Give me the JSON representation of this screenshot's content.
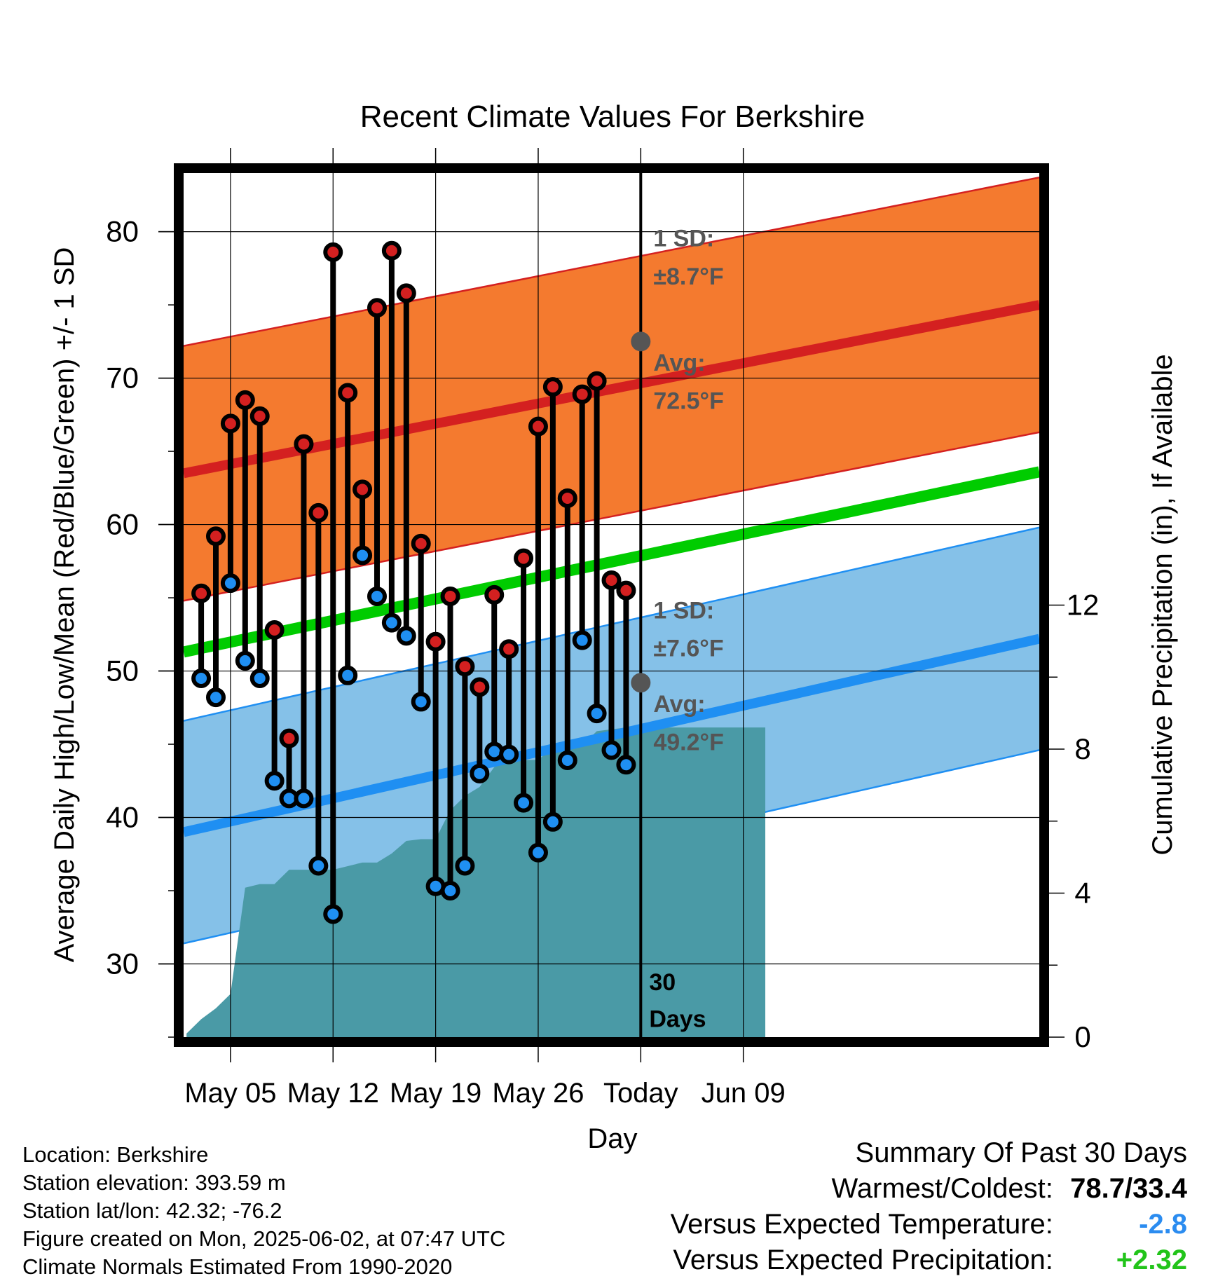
{
  "chart_data": {
    "type": "line",
    "title": "Recent Climate Values For Berkshire",
    "xlabel": "Day",
    "ylabel": "Average Daily High/Low/Mean (Red/Blue/Green) +/- 1 SD",
    "y2label": "Cumulative Precipitation (in), If Available",
    "ylim": [
      25,
      84
    ],
    "y2lim": [
      0,
      24
    ],
    "xlim": [
      -3.2,
      55.2
    ],
    "x_ticks": [
      {
        "x": 0,
        "label": "May 05"
      },
      {
        "x": 7,
        "label": "May 12"
      },
      {
        "x": 14,
        "label": "May 19"
      },
      {
        "x": 21,
        "label": "May 26"
      },
      {
        "x": 28,
        "label": "Today"
      },
      {
        "x": 35,
        "label": "Jun 09"
      }
    ],
    "y_ticks": [
      30,
      40,
      50,
      60,
      70,
      80
    ],
    "y2_ticks": [
      0,
      4,
      8,
      12
    ],
    "today_x": 28,
    "days_label": [
      "30",
      "Days"
    ],
    "normals": {
      "high_avg": {
        "start": 63.5,
        "end": 75.0
      },
      "high_sd": 8.7,
      "low_avg": {
        "start": 39.0,
        "end": 52.2
      },
      "low_sd": 7.6,
      "mean_avg": {
        "start": 51.3,
        "end": 63.6
      },
      "high_label": [
        "1 SD:",
        "±8.7°F",
        "Avg:",
        "72.5°F"
      ],
      "low_label": [
        "1 SD:",
        "±7.6°F",
        "Avg:",
        "49.2°F"
      ],
      "high_today": 72.5,
      "low_today": 49.2
    },
    "series": [
      {
        "name": "High",
        "x": [
          -2,
          -1,
          0,
          1,
          2,
          3,
          4,
          5,
          6,
          7,
          8,
          9,
          10,
          11,
          12,
          13,
          14,
          15,
          16,
          17,
          18,
          19,
          20,
          21,
          22,
          23,
          24,
          25,
          26,
          27
        ],
        "values": [
          55.3,
          59.2,
          66.9,
          68.5,
          67.4,
          52.8,
          45.4,
          65.5,
          60.8,
          78.6,
          69.0,
          62.4,
          74.8,
          78.7,
          75.8,
          58.7,
          52.0,
          55.1,
          50.3,
          48.9,
          55.2,
          51.5,
          57.7,
          66.7,
          69.4,
          61.8,
          68.9,
          69.8,
          56.2,
          55.5
        ]
      },
      {
        "name": "Low",
        "x": [
          -2,
          -1,
          0,
          1,
          2,
          3,
          4,
          5,
          6,
          7,
          8,
          9,
          10,
          11,
          12,
          13,
          14,
          15,
          16,
          17,
          18,
          19,
          20,
          21,
          22,
          23,
          24,
          25,
          26,
          27
        ],
        "values": [
          49.5,
          48.2,
          56.0,
          50.7,
          49.5,
          42.5,
          41.3,
          41.3,
          36.7,
          33.4,
          49.7,
          57.9,
          55.1,
          53.3,
          52.4,
          47.9,
          35.3,
          35.0,
          36.7,
          43.0,
          44.5,
          44.3,
          41.0,
          37.6,
          39.7,
          43.9,
          52.1,
          47.1,
          44.6,
          43.6
        ]
      },
      {
        "name": "Cumulative Precipitation",
        "x": [
          -3,
          -2,
          -1,
          0,
          1,
          2,
          3,
          4,
          5,
          6,
          7,
          8,
          9,
          10,
          11,
          12,
          13,
          14,
          15,
          16,
          17,
          18,
          19,
          20,
          21,
          22,
          23,
          24,
          25,
          26,
          27,
          28,
          36.5
        ],
        "values": [
          0.1,
          0.5,
          0.8,
          1.2,
          4.15,
          4.25,
          4.25,
          4.65,
          4.65,
          4.65,
          4.65,
          4.75,
          4.85,
          4.85,
          5.1,
          5.45,
          5.5,
          5.5,
          6.3,
          6.7,
          6.95,
          7.5,
          7.7,
          7.7,
          7.7,
          8.05,
          8.1,
          8.1,
          8.5,
          8.55,
          8.6,
          8.6,
          8.6
        ]
      }
    ]
  },
  "footer": {
    "location": "Location: Berkshire",
    "elevation": "Station elevation: 393.59 m",
    "latlon": "Station lat/lon: 42.32; -76.2",
    "created": "Figure created on Mon, 2025-06-02, at 07:47 UTC",
    "normals": "Climate Normals Estimated From 1990-2020"
  },
  "summary": {
    "title": "Summary Of Past 30 Days",
    "warmest_label": "Warmest/Coldest:",
    "warmest_value": "78.7/33.4",
    "temp_label": "Versus Expected Temperature:",
    "temp_value": "-2.8",
    "temp_color": "#2b8cf0",
    "precip_label": "Versus Expected Precipitation:",
    "precip_value": "+2.32",
    "precip_color": "#22c41a"
  },
  "colors": {
    "high_band": "#f47a2f",
    "high_line": "#d42020",
    "low_band": "#85c1e8",
    "low_line": "#1f8ff2",
    "mean_line": "#00cc00",
    "precip": "#4a9aa6",
    "high_dot": "#d42020",
    "low_dot": "#1f8ff2",
    "annotation": "#555555"
  }
}
